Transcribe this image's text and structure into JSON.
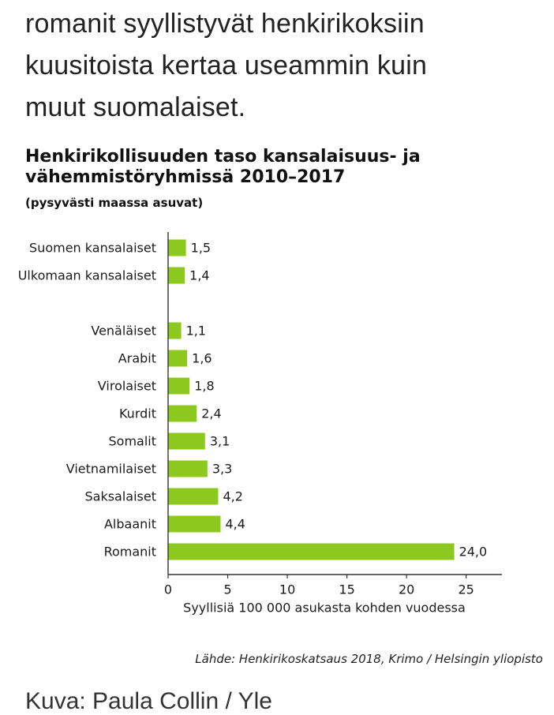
{
  "intro": {
    "lines": [
      "romanit syyllistyvät henkirikoksiin",
      "kuusitoista kertaa useammin kuin",
      "muut suomalaiset."
    ]
  },
  "chart_data": {
    "type": "bar",
    "orientation": "horizontal",
    "title_lines": [
      "Henkirikollisuuden taso kansalaisuus- ja",
      "vähemmistöryhmissä 2010–2017"
    ],
    "subtitle": "(pysyvästi maassa asuvat)",
    "categories": [
      "Suomen kansalaiset",
      "Ulkomaan kansalaiset",
      "Venäläiset",
      "Arabit",
      "Virolaiset",
      "Kurdit",
      "Somalit",
      "Vietnamilaiset",
      "Saksalaiset",
      "Albaanit",
      "Romanit"
    ],
    "values": [
      1.5,
      1.4,
      1.1,
      1.6,
      1.8,
      2.4,
      3.1,
      3.3,
      4.2,
      4.4,
      24.0
    ],
    "value_labels": [
      "1,5",
      "1,4",
      "1,1",
      "1,6",
      "1,8",
      "2,4",
      "3,1",
      "3,3",
      "4,2",
      "4,4",
      "24,0"
    ],
    "group_gap_after": 1,
    "xlim": [
      0,
      28
    ],
    "xticks": [
      0,
      5,
      10,
      15,
      20,
      25
    ],
    "xlabel": "Syyllisiä 100 000 asukasta kohden vuodessa",
    "bar_color": "#8cc81e",
    "grid": false,
    "legend": "none"
  },
  "source": "Lähde: Henkirikoskatsaus 2018, Krimo / Helsingin yliopisto",
  "credit": "Kuva: Paula Collin / Yle"
}
